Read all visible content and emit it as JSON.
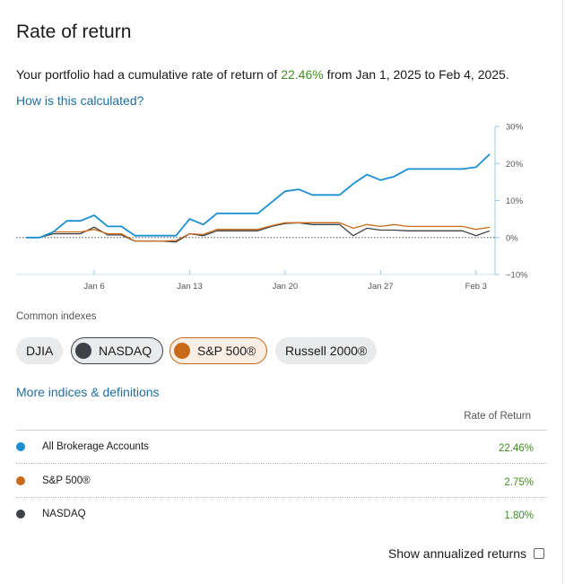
{
  "title": "Rate of return",
  "summary": {
    "prefix": "Your portfolio had a cumulative rate of return of ",
    "rate": "22.46%",
    "suffix": " from Jan 1, 2025 to Feb 4, 2025."
  },
  "how_link": "How is this calculated?",
  "common_indexes_label": "Common indexes",
  "index_pills": [
    {
      "label": "DJIA",
      "active": false
    },
    {
      "label": "NASDAQ",
      "active": true,
      "color": "#3c4248",
      "border": "#3c4248",
      "bg": "#e9eaeb"
    },
    {
      "label": "S&P 500®",
      "active": true,
      "color": "#c96a1a",
      "border": "#c96a1a",
      "bg": "#fbeee4"
    },
    {
      "label": "Russell 2000®",
      "active": false
    }
  ],
  "more_link": "More indices & definitions",
  "table": {
    "header": "Rate of Return",
    "rows": [
      {
        "name": "All Brokerage Accounts",
        "value": "22.46%",
        "color": "#1a8fd0"
      },
      {
        "name": "S&P 500®",
        "value": "2.75%",
        "color": "#c96a1a"
      },
      {
        "name": "NASDAQ",
        "value": "1.80%",
        "color": "#3c4248"
      }
    ]
  },
  "annualized_label": "Show annualized returns",
  "chart_data": {
    "type": "line",
    "x_tick_labels": [
      "Jan 6",
      "Jan 13",
      "Jan 20",
      "Jan 27",
      "Feb 3"
    ],
    "y_tick_labels": [
      "30%",
      "20%",
      "10%",
      "0%",
      "−10%"
    ],
    "ylim": [
      -10,
      30
    ],
    "zero_line": "dotted",
    "series": [
      {
        "name": "All Brokerage Accounts",
        "color": "#1a8fd0",
        "x": [
          "Jan 1",
          "Jan 2",
          "Jan 3",
          "Jan 4",
          "Jan 5",
          "Jan 6",
          "Jan 7",
          "Jan 8",
          "Jan 9",
          "Jan 10",
          "Jan 11",
          "Jan 12",
          "Jan 13",
          "Jan 14",
          "Jan 15",
          "Jan 16",
          "Jan 17",
          "Jan 18",
          "Jan 19",
          "Jan 20",
          "Jan 21",
          "Jan 22",
          "Jan 23",
          "Jan 24",
          "Jan 25",
          "Jan 26",
          "Jan 27",
          "Jan 28",
          "Jan 29",
          "Jan 30",
          "Jan 31",
          "Feb 1",
          "Feb 2",
          "Feb 3",
          "Feb 4"
        ],
        "y": [
          0,
          0,
          1.5,
          4.5,
          4.5,
          6,
          3,
          3,
          0.5,
          0.5,
          0.5,
          0.5,
          5,
          3.5,
          6.5,
          6.5,
          6.5,
          6.5,
          9.5,
          12.5,
          13,
          11.5,
          11.5,
          11.5,
          14.5,
          17,
          15.5,
          16.5,
          18.5,
          18.5,
          18.5,
          18.5,
          18.5,
          19,
          22.5
        ]
      },
      {
        "name": "S&P 500®",
        "color": "#c96a1a",
        "x": [
          "Jan 1",
          "Jan 2",
          "Jan 3",
          "Jan 4",
          "Jan 5",
          "Jan 6",
          "Jan 7",
          "Jan 8",
          "Jan 9",
          "Jan 10",
          "Jan 11",
          "Jan 12",
          "Jan 13",
          "Jan 14",
          "Jan 15",
          "Jan 16",
          "Jan 17",
          "Jan 18",
          "Jan 19",
          "Jan 20",
          "Jan 21",
          "Jan 22",
          "Jan 23",
          "Jan 24",
          "Jan 25",
          "Jan 26",
          "Jan 27",
          "Jan 28",
          "Jan 29",
          "Jan 30",
          "Jan 31",
          "Feb 1",
          "Feb 2",
          "Feb 3",
          "Feb 4"
        ],
        "y": [
          0,
          0,
          1.5,
          1.5,
          1.5,
          2.2,
          1,
          1,
          -1,
          -1,
          -1,
          -0.8,
          1,
          0.8,
          2.2,
          2.2,
          2.2,
          2.2,
          3.2,
          4,
          4,
          4,
          4,
          4,
          2.5,
          3.5,
          3,
          3.5,
          3,
          3,
          3,
          3,
          3,
          2.2,
          2.75
        ]
      },
      {
        "name": "NASDAQ",
        "color": "#3c4248",
        "x": [
          "Jan 1",
          "Jan 2",
          "Jan 3",
          "Jan 4",
          "Jan 5",
          "Jan 6",
          "Jan 7",
          "Jan 8",
          "Jan 9",
          "Jan 10",
          "Jan 11",
          "Jan 12",
          "Jan 13",
          "Jan 14",
          "Jan 15",
          "Jan 16",
          "Jan 17",
          "Jan 18",
          "Jan 19",
          "Jan 20",
          "Jan 21",
          "Jan 22",
          "Jan 23",
          "Jan 24",
          "Jan 25",
          "Jan 26",
          "Jan 27",
          "Jan 28",
          "Jan 29",
          "Jan 30",
          "Jan 31",
          "Feb 1",
          "Feb 2",
          "Feb 3",
          "Feb 4"
        ],
        "y": [
          0,
          0,
          1,
          1,
          1,
          2.8,
          0.7,
          0.7,
          -1,
          -1,
          -1,
          -1.2,
          1,
          0.5,
          1.8,
          1.8,
          1.8,
          1.8,
          3,
          3.8,
          4,
          3.5,
          3.5,
          3.5,
          0.5,
          2.5,
          2,
          2,
          1.8,
          1.8,
          1.8,
          1.8,
          1.8,
          0.5,
          1.8
        ]
      }
    ]
  }
}
